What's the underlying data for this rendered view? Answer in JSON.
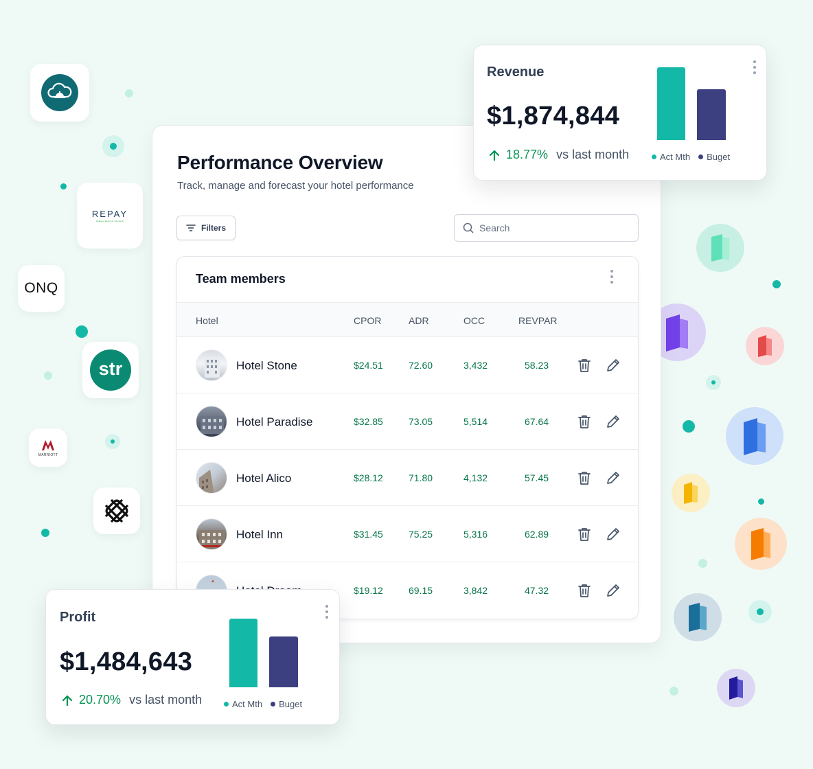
{
  "page": {
    "title": "Performance Overview",
    "subtitle": "Track, manage and forecast your hotel performance"
  },
  "toolbar": {
    "filters_label": "Filters",
    "search_placeholder": "Search"
  },
  "team": {
    "title": "Team members",
    "columns": [
      "Hotel",
      "CPOR",
      "ADR",
      "OCC",
      "REVPAR"
    ],
    "rows": [
      {
        "name": "Hotel Stone",
        "cpor": "$24.51",
        "adr": "72.60",
        "occ": "3,432",
        "revpar": "58.23"
      },
      {
        "name": "Hotel Paradise",
        "cpor": "$32.85",
        "adr": "73.05",
        "occ": "5,514",
        "revpar": "67.64"
      },
      {
        "name": "Hotel Alico",
        "cpor": "$28.12",
        "adr": "71.80",
        "occ": "4,132",
        "revpar": "57.45"
      },
      {
        "name": "Hotel Inn",
        "cpor": "$31.45",
        "adr": "75.25",
        "occ": "5,316",
        "revpar": "62.89"
      },
      {
        "name": "Hotel Dream",
        "cpor": "$19.12",
        "adr": "69.15",
        "occ": "3,842",
        "revpar": "47.32"
      }
    ]
  },
  "revenue": {
    "title": "Revenue",
    "value": "$1,874,844",
    "change": "18.77%",
    "vs": "vs last month",
    "legend": [
      "Act Mth",
      "Buget"
    ],
    "bars": {
      "act_mth": 1.0,
      "buget": 0.7
    }
  },
  "profit": {
    "title": "Profit",
    "value": "$1,484,643",
    "change": "20.70%",
    "vs": "vs last month",
    "legend": [
      "Act Mth",
      "Buget"
    ],
    "bars": {
      "act_mth": 1.0,
      "buget": 0.74
    }
  },
  "logos": {
    "repay": "REPAY",
    "repay_tagline": "Realtime Electronic Payments",
    "onq": "ONQ",
    "str": "str",
    "marriott": "MARRIOTT"
  },
  "colors": {
    "accent": "#14b8a6",
    "budget": "#3d4080",
    "positive": "#079455",
    "background": "#effaf6"
  },
  "icons": {
    "filters": "filter-lines-icon",
    "search": "search-icon",
    "delete": "trash-icon",
    "edit": "pencil-icon",
    "more": "dots-vertical-icon",
    "trend": "arrow-up-icon",
    "integrations": "door-icon"
  }
}
